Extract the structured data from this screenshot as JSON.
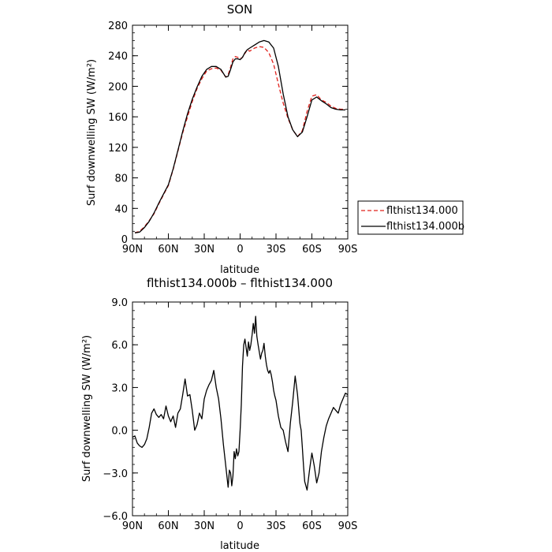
{
  "chart_data": [
    {
      "type": "line",
      "title": "SON",
      "xlabel": "latitude",
      "ylabel": "Surf downwelling SW (W/m²)",
      "xlim": [
        90,
        -90
      ],
      "ylim": [
        0,
        280
      ],
      "x_ticks": [
        90,
        60,
        30,
        0,
        -30,
        -60,
        -90
      ],
      "x_tick_labels": [
        "90N",
        "60N",
        "30N",
        "0",
        "30S",
        "60S",
        "90S"
      ],
      "y_ticks": [
        0,
        40,
        80,
        120,
        160,
        200,
        240,
        280
      ],
      "y_tick_labels": [
        "0",
        "40",
        "80",
        "120",
        "160",
        "200",
        "240",
        "280"
      ],
      "legend": "right-of-plot",
      "series": [
        {
          "name": "flthist134.000",
          "color": "#e0201b",
          "dash": "dashed",
          "x": [
            88,
            84,
            80,
            76,
            72,
            68,
            64,
            60,
            56,
            52,
            48,
            44,
            40,
            36,
            32,
            28,
            24,
            20,
            16,
            12,
            10,
            8,
            6,
            4,
            2,
            0,
            -2,
            -4,
            -6,
            -8,
            -12,
            -16,
            -20,
            -24,
            -28,
            -32,
            -36,
            -40,
            -44,
            -48,
            -52,
            -56,
            -60,
            -64,
            -68,
            -72,
            -76,
            -80,
            -84,
            -88
          ],
          "y": [
            8,
            10,
            16,
            24,
            33,
            46,
            58,
            70,
            91,
            115,
            139,
            160,
            180,
            197,
            210,
            220,
            223,
            224,
            221,
            212,
            215,
            225,
            236,
            239,
            238,
            236,
            238,
            243,
            248,
            246,
            250,
            252,
            251,
            244,
            229,
            203,
            178,
            158,
            143,
            134,
            142,
            167,
            187,
            189,
            182,
            179,
            174,
            171,
            170,
            170
          ]
        },
        {
          "name": "flthist134.000b",
          "color": "#000000",
          "dash": "solid",
          "x": [
            88,
            84,
            80,
            76,
            72,
            68,
            64,
            60,
            56,
            52,
            48,
            44,
            40,
            36,
            32,
            28,
            24,
            20,
            16,
            12,
            10,
            8,
            6,
            4,
            2,
            0,
            -2,
            -4,
            -6,
            -8,
            -12,
            -16,
            -20,
            -24,
            -28,
            -32,
            -36,
            -40,
            -44,
            -48,
            -52,
            -56,
            -60,
            -64,
            -68,
            -72,
            -76,
            -80,
            -84,
            -88
          ],
          "y": [
            8,
            9,
            15,
            23,
            34,
            47,
            59,
            71,
            92,
            116,
            141,
            164,
            183,
            199,
            213,
            222,
            226,
            226,
            222,
            212,
            213,
            222,
            232,
            236,
            236,
            235,
            238,
            244,
            248,
            250,
            254,
            258,
            260,
            258,
            250,
            226,
            190,
            160,
            143,
            134,
            140,
            160,
            182,
            186,
            181,
            177,
            172,
            170,
            169,
            169
          ]
        }
      ]
    },
    {
      "type": "line",
      "title": "flthist134.000b – flthist134.000",
      "xlabel": "latitude",
      "ylabel": "Surf downwelling SW (W/m²)",
      "xlim": [
        90,
        -90
      ],
      "ylim": [
        -6,
        9
      ],
      "x_ticks": [
        90,
        60,
        30,
        0,
        -30,
        -60,
        -90
      ],
      "x_tick_labels": [
        "90N",
        "60N",
        "30N",
        "0",
        "30S",
        "60S",
        "90S"
      ],
      "y_ticks": [
        -6,
        -3,
        0,
        3,
        6,
        9
      ],
      "y_tick_labels": [
        "−6.0",
        "−3.0",
        "0.0",
        "3.0",
        "6.0",
        "9.0"
      ],
      "series": [
        {
          "color": "#000000",
          "x": [
            90,
            88,
            86,
            84,
            82,
            80,
            78,
            76,
            74,
            72,
            70,
            68,
            66,
            64,
            62,
            60,
            58,
            56,
            54,
            52,
            50,
            48,
            46,
            44,
            42,
            40,
            38,
            36,
            34,
            32,
            30,
            28,
            26,
            24,
            22,
            20,
            18,
            16,
            14,
            12,
            10,
            9,
            8,
            7,
            6,
            5,
            4,
            3,
            2,
            1,
            0,
            -1,
            -2,
            -3,
            -4,
            -5,
            -6,
            -7,
            -8,
            -9,
            -10,
            -11,
            -12,
            -13,
            -14,
            -15,
            -16,
            -17,
            -18,
            -19,
            -20,
            -21,
            -22,
            -23,
            -24,
            -25,
            -26,
            -27,
            -28,
            -29,
            -30,
            -32,
            -34,
            -36,
            -38,
            -40,
            -42,
            -44,
            -46,
            -48,
            -50,
            -51,
            -52,
            -53,
            -54,
            -56,
            -58,
            -60,
            -62,
            -64,
            -66,
            -68,
            -70,
            -72,
            -74,
            -76,
            -78,
            -80,
            -82,
            -84,
            -86,
            -88,
            -90
          ],
          "y": [
            -0.5,
            -0.4,
            -0.9,
            -1.1,
            -1.2,
            -1.0,
            -0.6,
            0.2,
            1.2,
            1.5,
            1.1,
            0.9,
            1.1,
            0.8,
            1.7,
            1.0,
            0.6,
            1.0,
            0.2,
            1.2,
            1.5,
            2.5,
            3.6,
            2.4,
            2.5,
            1.4,
            0.0,
            0.4,
            1.2,
            0.8,
            2.2,
            2.8,
            3.2,
            3.5,
            4.2,
            3.0,
            2.2,
            0.8,
            -1.0,
            -2.5,
            -4.0,
            -2.8,
            -3.0,
            -3.9,
            -3.2,
            -1.5,
            -2.0,
            -1.3,
            -1.8,
            -1.5,
            0.0,
            1.8,
            4.5,
            6.0,
            6.4,
            5.8,
            5.2,
            6.2,
            5.6,
            6.0,
            6.7,
            7.5,
            6.8,
            8.0,
            6.6,
            6.0,
            5.5,
            5.0,
            5.4,
            5.6,
            6.1,
            5.2,
            4.6,
            4.2,
            4.0,
            4.2,
            3.9,
            3.4,
            2.8,
            2.4,
            2.1,
            1.0,
            0.2,
            0.0,
            -0.8,
            -1.5,
            0.5,
            2.0,
            3.8,
            2.5,
            0.5,
            0.0,
            -1.2,
            -2.5,
            -3.6,
            -4.2,
            -2.8,
            -1.6,
            -2.5,
            -3.7,
            -3.0,
            -1.5,
            -0.5,
            0.3,
            0.8,
            1.2,
            1.6,
            1.4,
            1.2,
            1.8,
            2.2,
            2.6,
            2.5
          ]
        }
      ]
    }
  ]
}
